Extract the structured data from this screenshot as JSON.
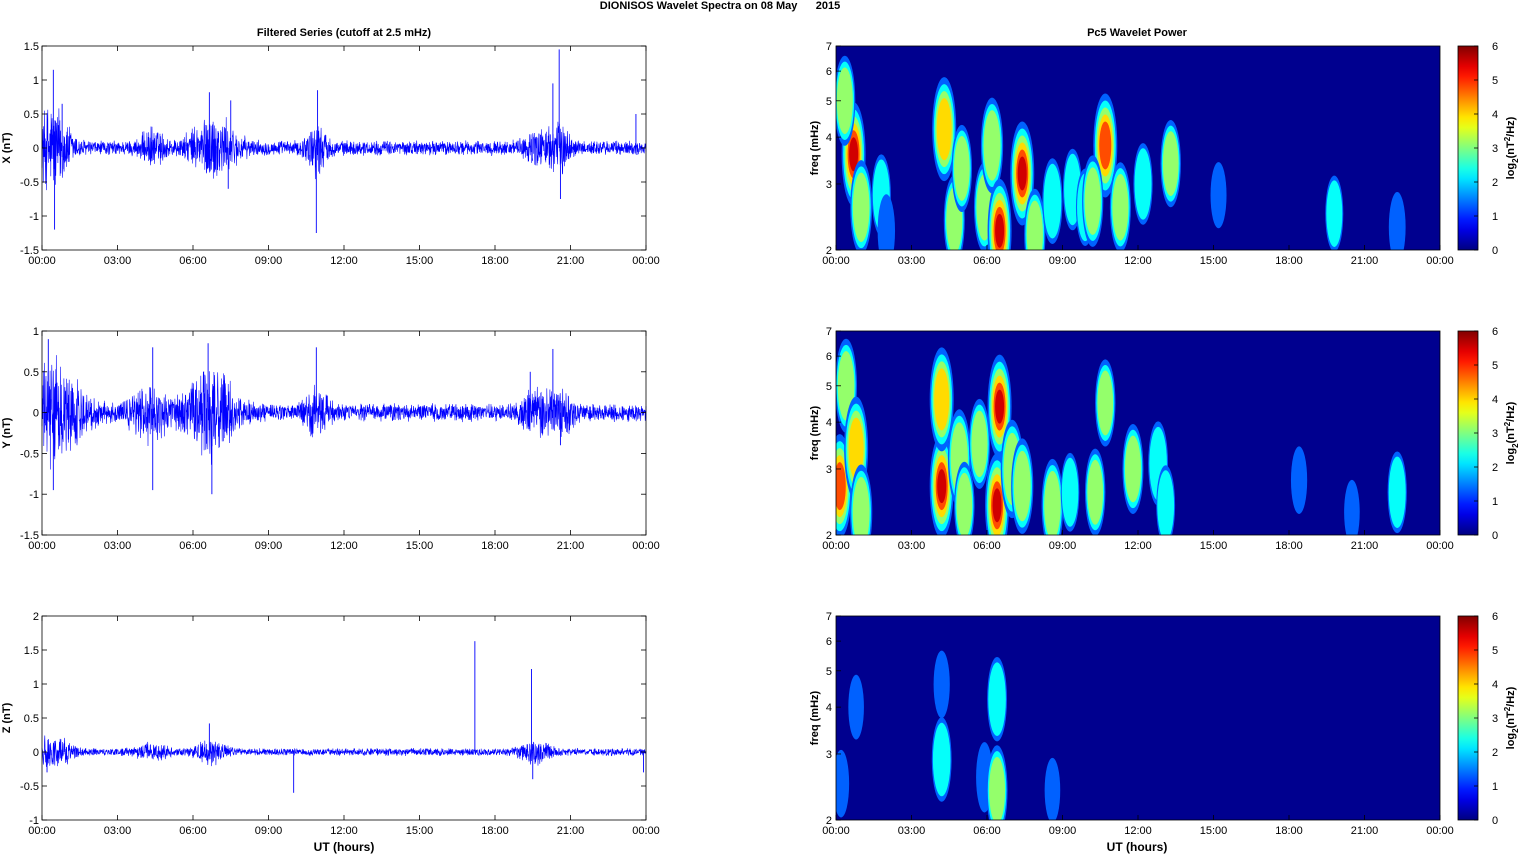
{
  "figure": {
    "suptitle": "DIONISOS Wavelet Spectra on 08 May      2015",
    "left_title": "Filtered Series (cutoff at 2.5 mHz)",
    "right_title": "Pc5 Wavelet Power",
    "xlabel": "UT (hours)",
    "x_ticks": [
      "00:00",
      "03:00",
      "06:00",
      "09:00",
      "12:00",
      "15:00",
      "18:00",
      "21:00",
      "00:00"
    ]
  },
  "colors": {
    "trace": "#0000ff",
    "axis": "#000000",
    "background_power": "#00008f"
  },
  "chart_data": [
    {
      "type": "line",
      "title": "Filtered Series (cutoff at 2.5 mHz)",
      "ylabel": "X (nT)",
      "xlim_hours": [
        0,
        24
      ],
      "ylim": [
        -1.5,
        1.5
      ],
      "y_ticks": [
        -1.5,
        -1,
        -0.5,
        0,
        0.5,
        1,
        1.5
      ],
      "y_tick_labels": [
        "-1.5",
        "-1",
        "-0.5",
        "0",
        "0.5",
        "1",
        "1.5"
      ],
      "baseline_amplitude": 0.1,
      "bursts": [
        {
          "t": 0.4,
          "amp": 0.55,
          "width": 0.7
        },
        {
          "t": 4.4,
          "amp": 0.2,
          "width": 0.5
        },
        {
          "t": 6.8,
          "amp": 0.4,
          "width": 0.9
        },
        {
          "t": 10.9,
          "amp": 0.3,
          "width": 0.4
        },
        {
          "t": 19.8,
          "amp": 0.2,
          "width": 0.6
        },
        {
          "t": 20.6,
          "amp": 0.25,
          "width": 0.4
        }
      ],
      "spikes": [
        {
          "t": 0.45,
          "v": 1.15
        },
        {
          "t": 0.5,
          "v": -1.2
        },
        {
          "t": 6.65,
          "v": 0.82
        },
        {
          "t": 7.5,
          "v": 0.7
        },
        {
          "t": 7.4,
          "v": -0.6
        },
        {
          "t": 10.95,
          "v": 0.85
        },
        {
          "t": 10.9,
          "v": -1.25
        },
        {
          "t": 20.3,
          "v": 0.95
        },
        {
          "t": 20.55,
          "v": 1.45
        },
        {
          "t": 20.6,
          "v": -0.75
        },
        {
          "t": 23.6,
          "v": 0.5
        },
        {
          "t": 0.8,
          "v": 0.65
        }
      ]
    },
    {
      "type": "line",
      "ylabel": "Y (nT)",
      "xlim_hours": [
        0,
        24
      ],
      "ylim": [
        -1.5,
        1
      ],
      "y_ticks": [
        -1.5,
        -1,
        -0.5,
        0,
        0.5,
        1
      ],
      "y_tick_labels": [
        "-1.5",
        "-1",
        "-0.5",
        "0",
        "0.5",
        "1"
      ],
      "baseline_amplitude": 0.1,
      "bursts": [
        {
          "t": 0.5,
          "amp": 0.5,
          "width": 1.2
        },
        {
          "t": 4.3,
          "amp": 0.25,
          "width": 0.8
        },
        {
          "t": 6.7,
          "amp": 0.45,
          "width": 1.0
        },
        {
          "t": 10.9,
          "amp": 0.2,
          "width": 0.5
        },
        {
          "t": 19.6,
          "amp": 0.2,
          "width": 0.6
        },
        {
          "t": 20.6,
          "amp": 0.2,
          "width": 0.5
        }
      ],
      "spikes": [
        {
          "t": 0.25,
          "v": 0.9
        },
        {
          "t": 0.45,
          "v": -0.95
        },
        {
          "t": 4.4,
          "v": 0.8
        },
        {
          "t": 4.4,
          "v": -0.95
        },
        {
          "t": 6.6,
          "v": 0.85
        },
        {
          "t": 6.75,
          "v": -1.0
        },
        {
          "t": 10.9,
          "v": 0.8
        },
        {
          "t": 20.3,
          "v": 0.78
        },
        {
          "t": 19.4,
          "v": 0.5
        },
        {
          "t": 20.6,
          "v": -0.4
        }
      ]
    },
    {
      "type": "line",
      "ylabel": "Z (nT)",
      "xlim_hours": [
        0,
        24
      ],
      "ylim": [
        -1,
        2
      ],
      "y_ticks": [
        -1,
        -0.5,
        0,
        0.5,
        1,
        1.5,
        2
      ],
      "y_tick_labels": [
        "-1",
        "-0.5",
        "0",
        "0.5",
        "1",
        "1.5",
        "2"
      ],
      "baseline_amplitude": 0.05,
      "bursts": [
        {
          "t": 0.4,
          "amp": 0.2,
          "width": 0.8
        },
        {
          "t": 4.4,
          "amp": 0.1,
          "width": 0.6
        },
        {
          "t": 6.7,
          "amp": 0.15,
          "width": 0.6
        },
        {
          "t": 19.6,
          "amp": 0.15,
          "width": 0.6
        }
      ],
      "spikes": [
        {
          "t": 6.65,
          "v": 0.42
        },
        {
          "t": 10.0,
          "v": -0.6
        },
        {
          "t": 17.2,
          "v": 1.63
        },
        {
          "t": 19.45,
          "v": 1.22
        },
        {
          "t": 19.5,
          "v": -0.4
        },
        {
          "t": 0.2,
          "v": -0.3
        },
        {
          "t": 23.9,
          "v": -0.3
        }
      ]
    },
    {
      "type": "heatmap",
      "title": "Pc5 Wavelet Power",
      "ylabel": "freq (mHz)",
      "colorbar_label": "log2(nT^2/Hz)",
      "xlim_hours": [
        0,
        24
      ],
      "freq_range_mHz": [
        2,
        7
      ],
      "y_scale": "log",
      "y_ticks": [
        2,
        3,
        4,
        5,
        6,
        7
      ],
      "y_tick_labels": [
        "2",
        "3",
        "4",
        "5",
        "6",
        "7"
      ],
      "clim": [
        0,
        6
      ],
      "cbar_ticks": [
        "0",
        "1",
        "2",
        "3",
        "4",
        "5",
        "6"
      ],
      "blobs": [
        {
          "t": 0.7,
          "f": 3.6,
          "p": 5.4
        },
        {
          "t": 0.35,
          "f": 5.0,
          "p": 3.2
        },
        {
          "t": 1.0,
          "f": 2.6,
          "p": 3.5
        },
        {
          "t": 1.8,
          "f": 2.8,
          "p": 2.6
        },
        {
          "t": 2.0,
          "f": 2.25,
          "p": 2.0
        },
        {
          "t": 4.3,
          "f": 4.2,
          "p": 4.2
        },
        {
          "t": 4.7,
          "f": 2.4,
          "p": 3.2
        },
        {
          "t": 5.0,
          "f": 3.3,
          "p": 3.0
        },
        {
          "t": 5.9,
          "f": 2.6,
          "p": 3.2
        },
        {
          "t": 6.2,
          "f": 3.8,
          "p": 3.6
        },
        {
          "t": 6.5,
          "f": 2.25,
          "p": 6.0
        },
        {
          "t": 7.4,
          "f": 3.2,
          "p": 5.6
        },
        {
          "t": 7.9,
          "f": 2.2,
          "p": 3.3
        },
        {
          "t": 8.6,
          "f": 2.7,
          "p": 2.9
        },
        {
          "t": 9.4,
          "f": 2.9,
          "p": 2.6
        },
        {
          "t": 9.9,
          "f": 2.6,
          "p": 2.3
        },
        {
          "t": 10.7,
          "f": 3.8,
          "p": 5.2
        },
        {
          "t": 10.2,
          "f": 2.7,
          "p": 3.3
        },
        {
          "t": 11.3,
          "f": 2.6,
          "p": 3.2
        },
        {
          "t": 12.2,
          "f": 3.0,
          "p": 2.6
        },
        {
          "t": 13.3,
          "f": 3.4,
          "p": 3.0
        },
        {
          "t": 15.2,
          "f": 2.8,
          "p": 1.5
        },
        {
          "t": 19.8,
          "f": 2.5,
          "p": 2.2
        },
        {
          "t": 22.3,
          "f": 2.3,
          "p": 1.8
        }
      ]
    },
    {
      "type": "heatmap",
      "ylabel": "freq (mHz)",
      "colorbar_label": "log2(nT^2/Hz)",
      "xlim_hours": [
        0,
        24
      ],
      "freq_range_mHz": [
        2,
        7
      ],
      "y_scale": "log",
      "y_ticks": [
        2,
        3,
        4,
        5,
        6,
        7
      ],
      "y_tick_labels": [
        "2",
        "3",
        "4",
        "5",
        "6",
        "7"
      ],
      "clim": [
        0,
        6
      ],
      "cbar_ticks": [
        "0",
        "1",
        "2",
        "3",
        "4",
        "5",
        "6"
      ],
      "blobs": [
        {
          "t": 0.15,
          "f": 2.7,
          "p": 5.0
        },
        {
          "t": 0.4,
          "f": 5.0,
          "p": 3.5
        },
        {
          "t": 0.8,
          "f": 3.4,
          "p": 4.2
        },
        {
          "t": 1.0,
          "f": 2.3,
          "p": 3.6
        },
        {
          "t": 4.2,
          "f": 2.7,
          "p": 5.8
        },
        {
          "t": 4.2,
          "f": 4.6,
          "p": 4.4
        },
        {
          "t": 4.9,
          "f": 3.2,
          "p": 3.8
        },
        {
          "t": 5.1,
          "f": 2.4,
          "p": 3.0
        },
        {
          "t": 5.7,
          "f": 3.5,
          "p": 3.2
        },
        {
          "t": 6.4,
          "f": 2.4,
          "p": 6.0
        },
        {
          "t": 6.5,
          "f": 4.4,
          "p": 5.8
        },
        {
          "t": 7.0,
          "f": 3.0,
          "p": 3.8
        },
        {
          "t": 7.4,
          "f": 2.7,
          "p": 3.6
        },
        {
          "t": 8.6,
          "f": 2.4,
          "p": 3.4
        },
        {
          "t": 9.3,
          "f": 2.6,
          "p": 2.4
        },
        {
          "t": 10.3,
          "f": 2.6,
          "p": 3.0
        },
        {
          "t": 10.7,
          "f": 4.5,
          "p": 3.0
        },
        {
          "t": 11.8,
          "f": 3.0,
          "p": 3.2
        },
        {
          "t": 12.8,
          "f": 3.1,
          "p": 2.8
        },
        {
          "t": 13.1,
          "f": 2.4,
          "p": 2.5
        },
        {
          "t": 18.4,
          "f": 2.8,
          "p": 1.6
        },
        {
          "t": 20.5,
          "f": 2.3,
          "p": 1.4
        },
        {
          "t": 22.3,
          "f": 2.6,
          "p": 2.6
        }
      ]
    },
    {
      "type": "heatmap",
      "ylabel": "freq (mHz)",
      "colorbar_label": "log2(nT^2/Hz)",
      "xlim_hours": [
        0,
        24
      ],
      "freq_range_mHz": [
        2,
        7
      ],
      "y_scale": "log",
      "y_ticks": [
        2,
        3,
        4,
        5,
        6,
        7
      ],
      "y_tick_labels": [
        "2",
        "3",
        "4",
        "5",
        "6",
        "7"
      ],
      "clim": [
        0,
        6
      ],
      "cbar_ticks": [
        "0",
        "1",
        "2",
        "3",
        "4",
        "5",
        "6"
      ],
      "blobs": [
        {
          "t": 0.2,
          "f": 2.5,
          "p": 1.6
        },
        {
          "t": 0.8,
          "f": 4.0,
          "p": 1.4
        },
        {
          "t": 4.2,
          "f": 2.9,
          "p": 2.8
        },
        {
          "t": 4.2,
          "f": 4.6,
          "p": 1.6
        },
        {
          "t": 5.9,
          "f": 2.6,
          "p": 1.8
        },
        {
          "t": 6.4,
          "f": 2.4,
          "p": 3.2
        },
        {
          "t": 6.4,
          "f": 4.2,
          "p": 2.8
        },
        {
          "t": 8.6,
          "f": 2.4,
          "p": 1.4
        }
      ]
    }
  ]
}
